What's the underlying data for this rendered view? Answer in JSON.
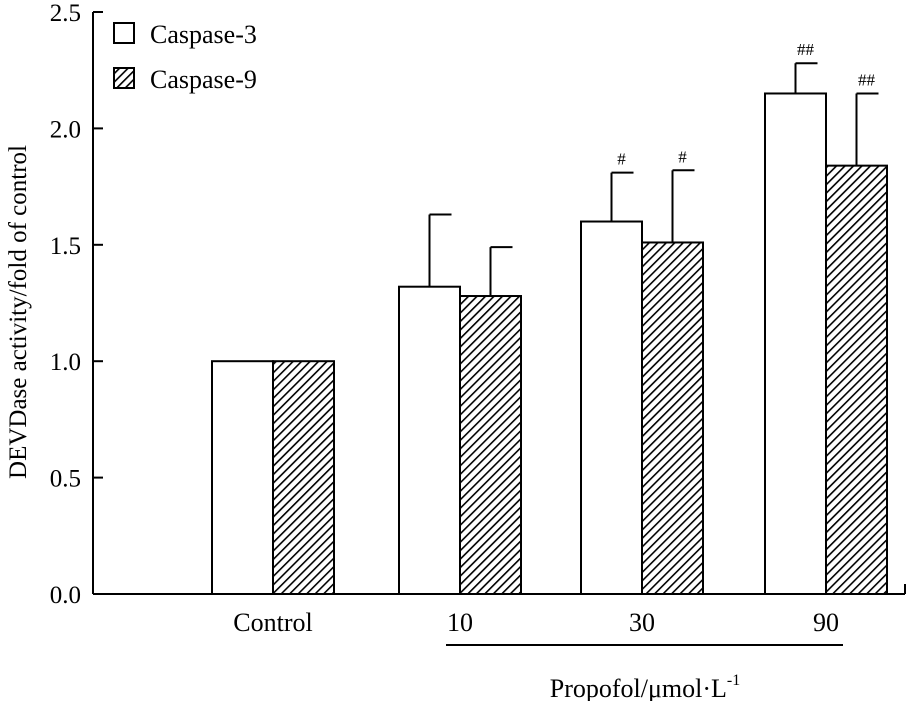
{
  "chart_data": {
    "type": "bar",
    "ylabel": "DEVDase activity/fold of control",
    "xlabel_group": "Propofol/μmol·L",
    "xlabel_superscript": "-1",
    "ylim": [
      0,
      2.5
    ],
    "yticks": [
      "0.0",
      "0.5",
      "1.0",
      "1.5",
      "2.0",
      "2.5"
    ],
    "categories": [
      "Control",
      "10",
      "30",
      "90"
    ],
    "series": [
      {
        "name": "Caspase-3",
        "fill": "white",
        "values": [
          1.0,
          1.32,
          1.6,
          2.15
        ],
        "errors": [
          0,
          0.31,
          0.21,
          0.13
        ],
        "annotations": [
          "",
          "",
          "#",
          "##"
        ]
      },
      {
        "name": "Caspase-9",
        "fill": "hatched",
        "values": [
          1.0,
          1.28,
          1.51,
          1.84
        ],
        "errors": [
          0,
          0.21,
          0.31,
          0.31
        ],
        "annotations": [
          "",
          "",
          "#",
          "##"
        ]
      }
    ]
  }
}
